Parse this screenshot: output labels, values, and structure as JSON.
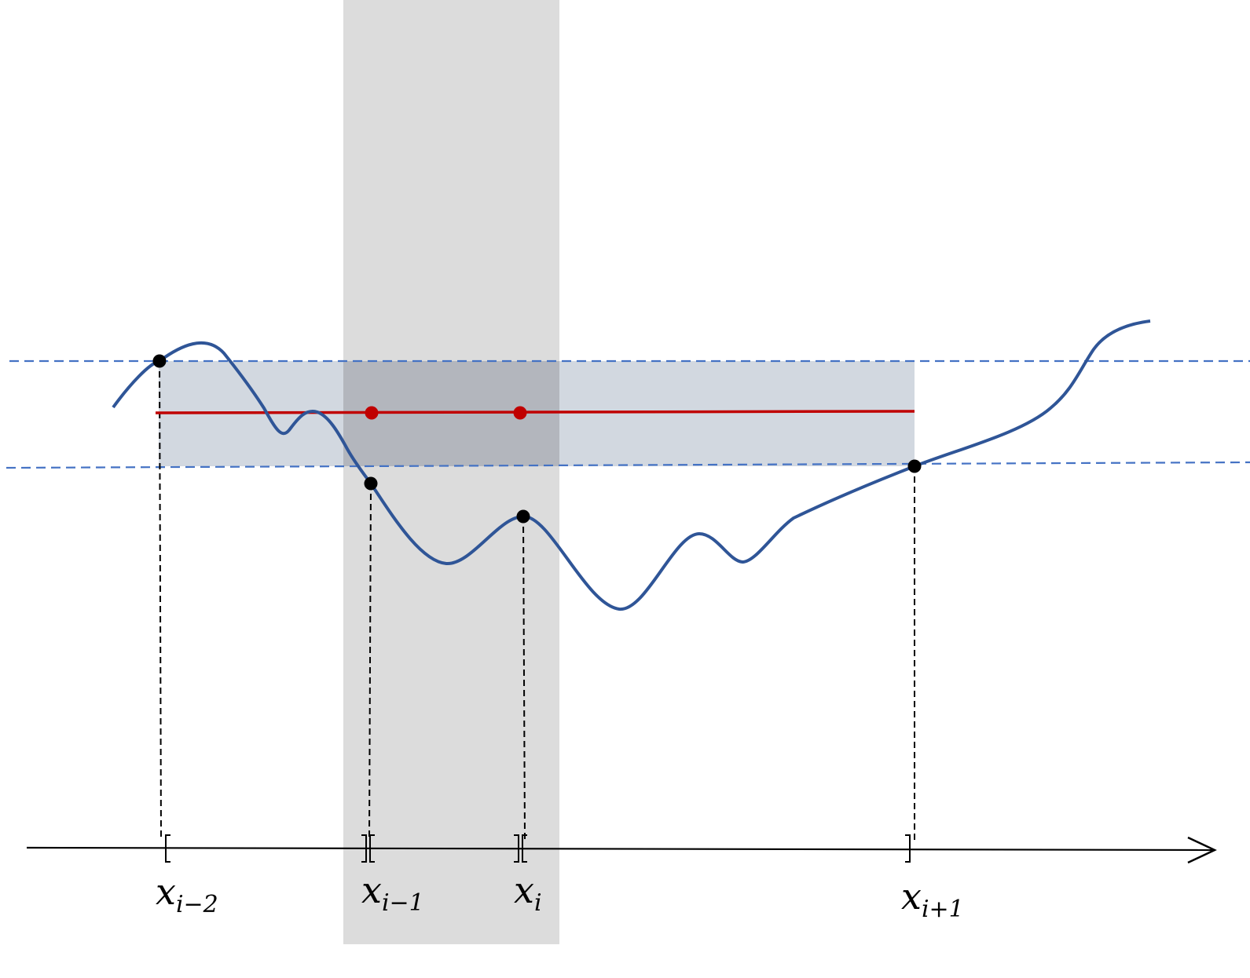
{
  "colors": {
    "curve": "#2f5597",
    "band_fill": "#d2d8e0",
    "shaded_column": "#dcdcdc",
    "overlap": "#b3b6bd",
    "threshold_dashed": "#4472c4",
    "level_line": "#c00000",
    "point": "#000000",
    "axis": "#000000"
  },
  "labels": [
    {
      "id": "x-i-minus-2",
      "base": "x",
      "sub": "i−2"
    },
    {
      "id": "x-i-minus-1",
      "base": "x",
      "sub": "i−1"
    },
    {
      "id": "x-i",
      "base": "x",
      "sub": "i"
    },
    {
      "id": "x-i-plus-1",
      "base": "x",
      "sub": "i+1"
    }
  ]
}
